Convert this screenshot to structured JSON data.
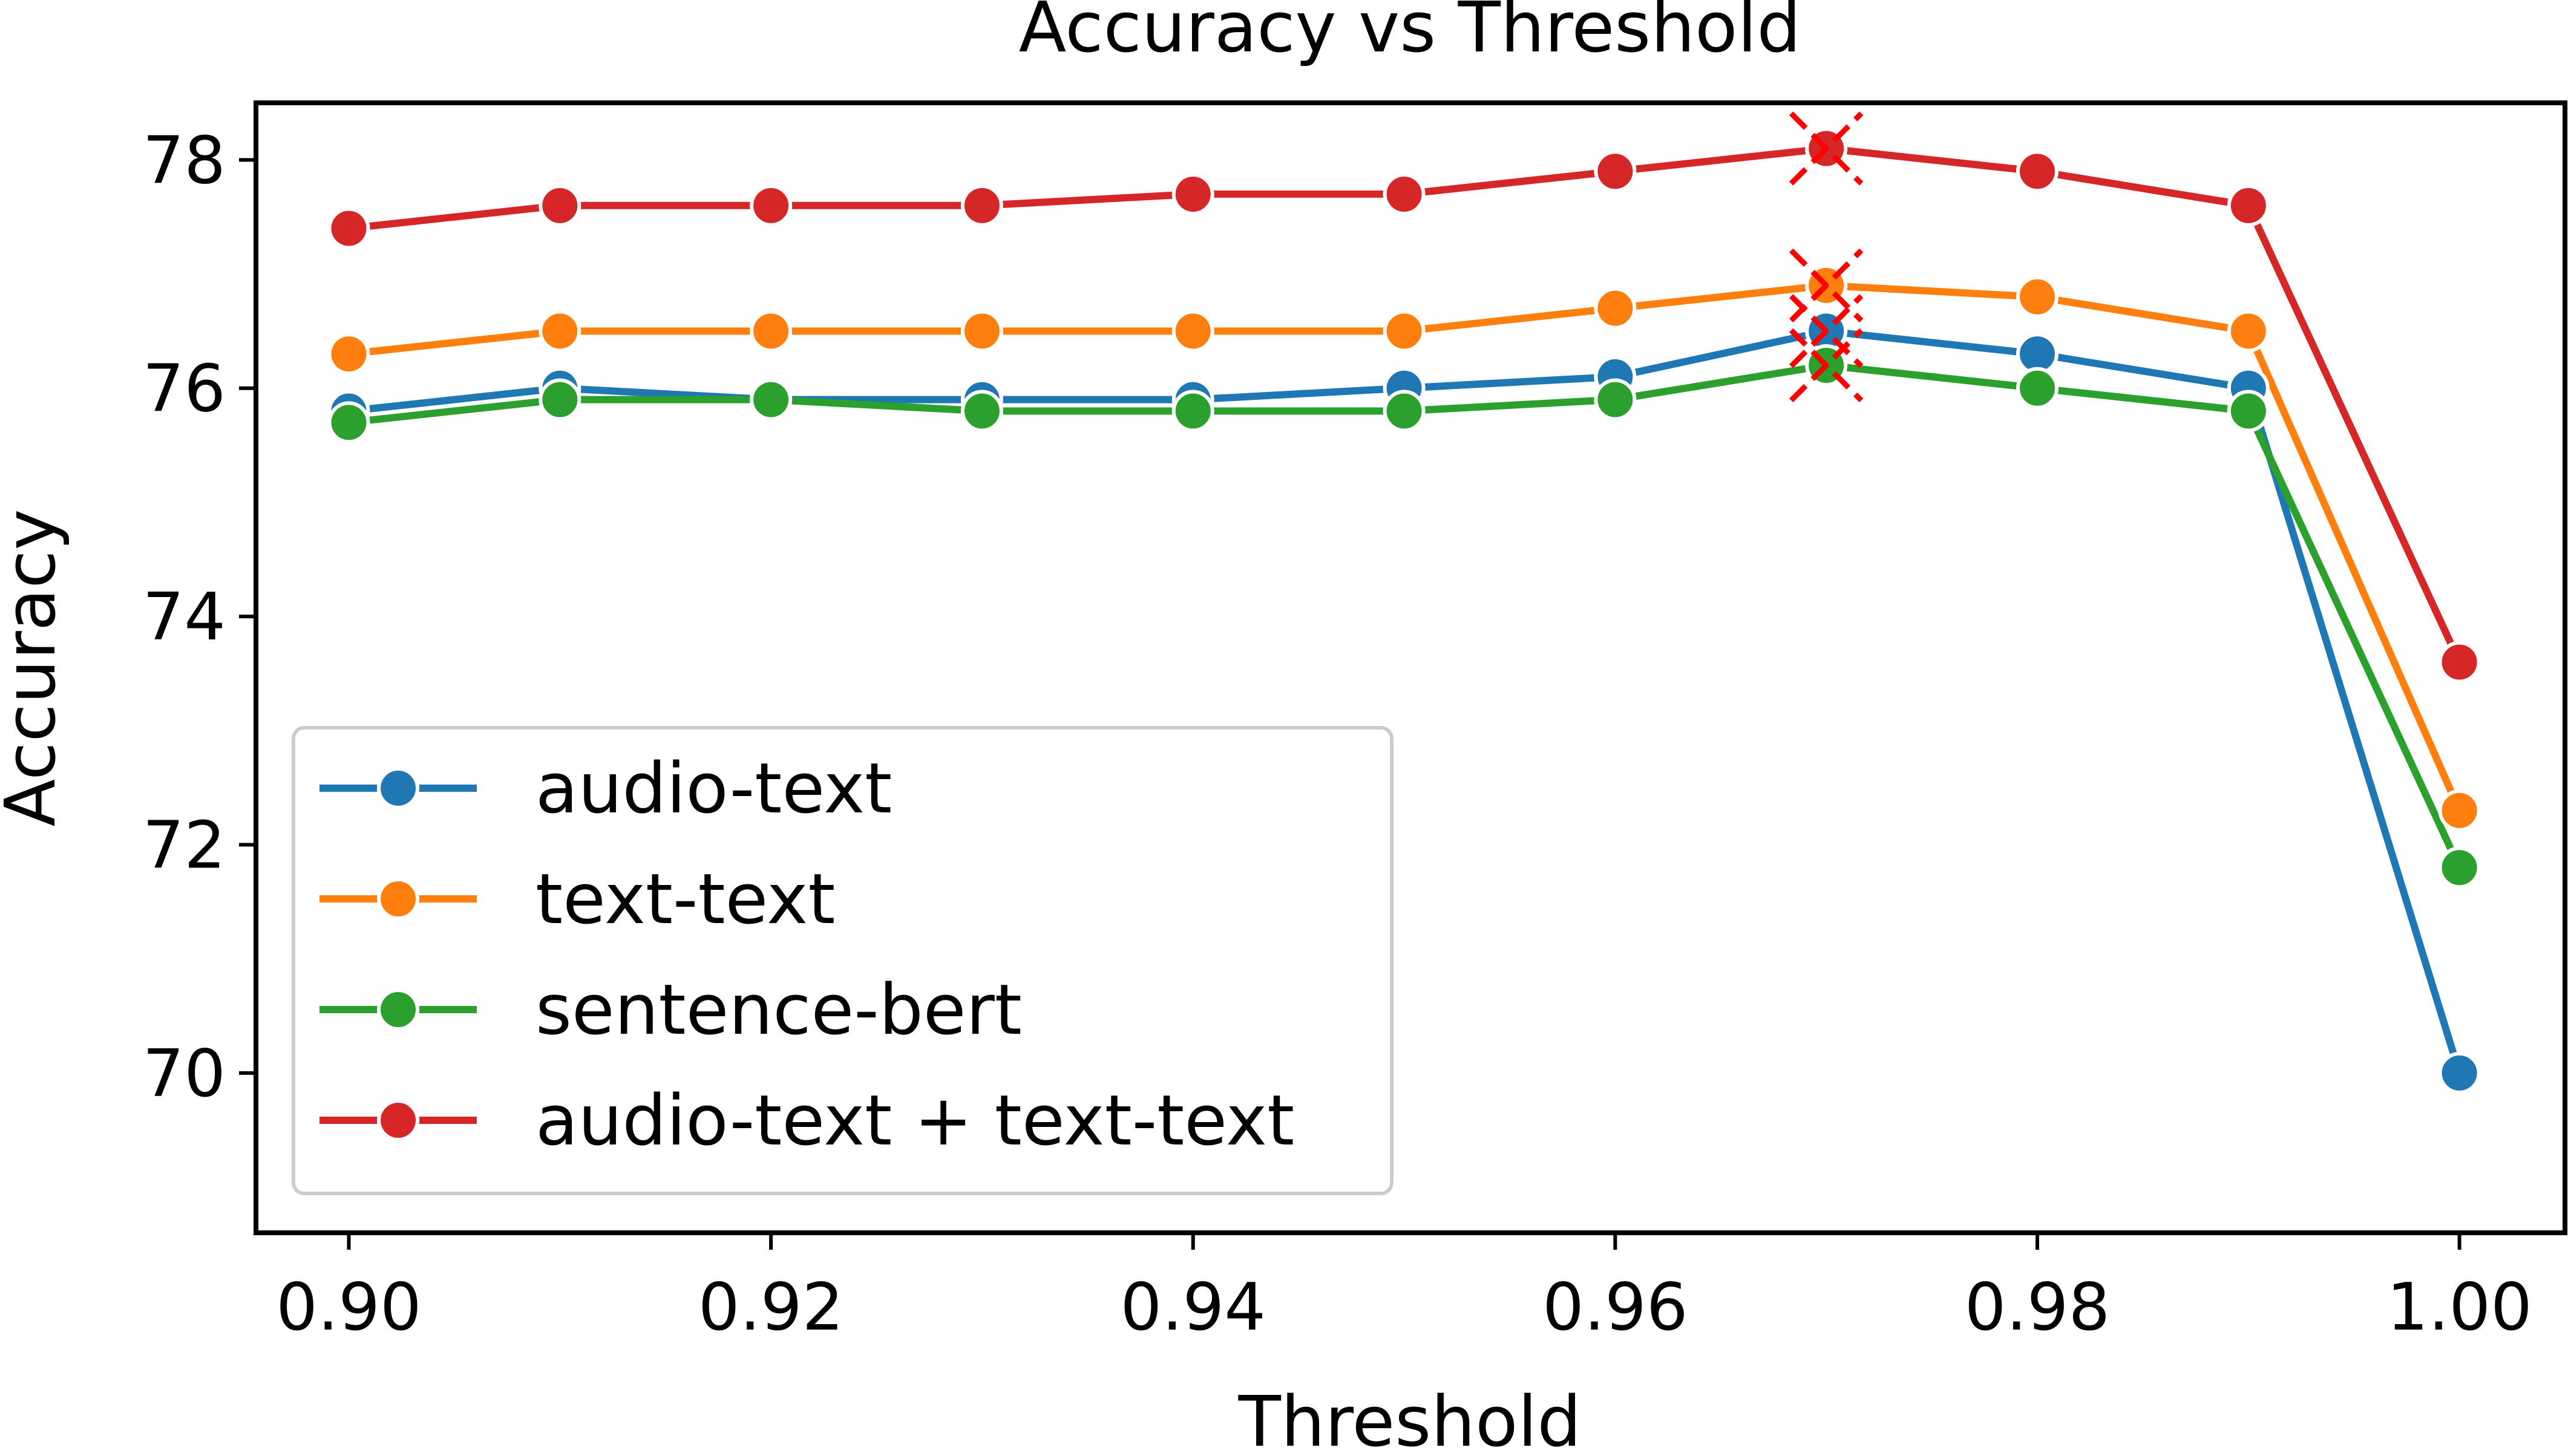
{
  "chart_data": {
    "type": "line",
    "title": "Accuracy vs Threshold",
    "xlabel": "Threshold",
    "ylabel": "Accuracy",
    "x": [
      0.9,
      0.91,
      0.92,
      0.93,
      0.94,
      0.95,
      0.96,
      0.97,
      0.98,
      0.99,
      1.0
    ],
    "xlim": [
      0.8956,
      1.005
    ],
    "ylim": [
      68.6,
      78.5
    ],
    "xticks": [
      0.9,
      0.92,
      0.94,
      0.96,
      0.98,
      1.0
    ],
    "xtick_labels": [
      "0.90",
      "0.92",
      "0.94",
      "0.96",
      "0.98",
      "1.00"
    ],
    "yticks": [
      70,
      72,
      74,
      76,
      78
    ],
    "ytick_labels": [
      "70",
      "72",
      "74",
      "76",
      "78"
    ],
    "grid": false,
    "legend_position": "lower-left",
    "series": [
      {
        "name": "audio-text",
        "color": "#1f77b4",
        "values": [
          75.8,
          76.0,
          75.9,
          75.9,
          75.9,
          76.0,
          76.1,
          76.5,
          76.3,
          76.0,
          70.0
        ]
      },
      {
        "name": "text-text",
        "color": "#ff7f0e",
        "values": [
          76.3,
          76.5,
          76.5,
          76.5,
          76.5,
          76.5,
          76.7,
          76.9,
          76.8,
          76.5,
          72.3
        ]
      },
      {
        "name": "sentence-bert",
        "color": "#2ca02c",
        "values": [
          75.7,
          75.9,
          75.9,
          75.8,
          75.8,
          75.8,
          75.9,
          76.2,
          76.0,
          75.8,
          71.8
        ]
      },
      {
        "name": "audio-text + text-text",
        "color": "#d62728",
        "values": [
          77.4,
          77.6,
          77.6,
          77.6,
          77.7,
          77.7,
          77.9,
          78.1,
          77.9,
          77.6,
          73.6
        ]
      }
    ],
    "highlight_markers": {
      "marker": "x",
      "color": "#ff0000",
      "points": [
        {
          "series": "audio-text",
          "x": 0.97,
          "y": 76.5
        },
        {
          "series": "text-text",
          "x": 0.97,
          "y": 76.9
        },
        {
          "series": "sentence-bert",
          "x": 0.97,
          "y": 76.2
        },
        {
          "series": "audio-text + text-text",
          "x": 0.97,
          "y": 78.1
        }
      ]
    }
  }
}
